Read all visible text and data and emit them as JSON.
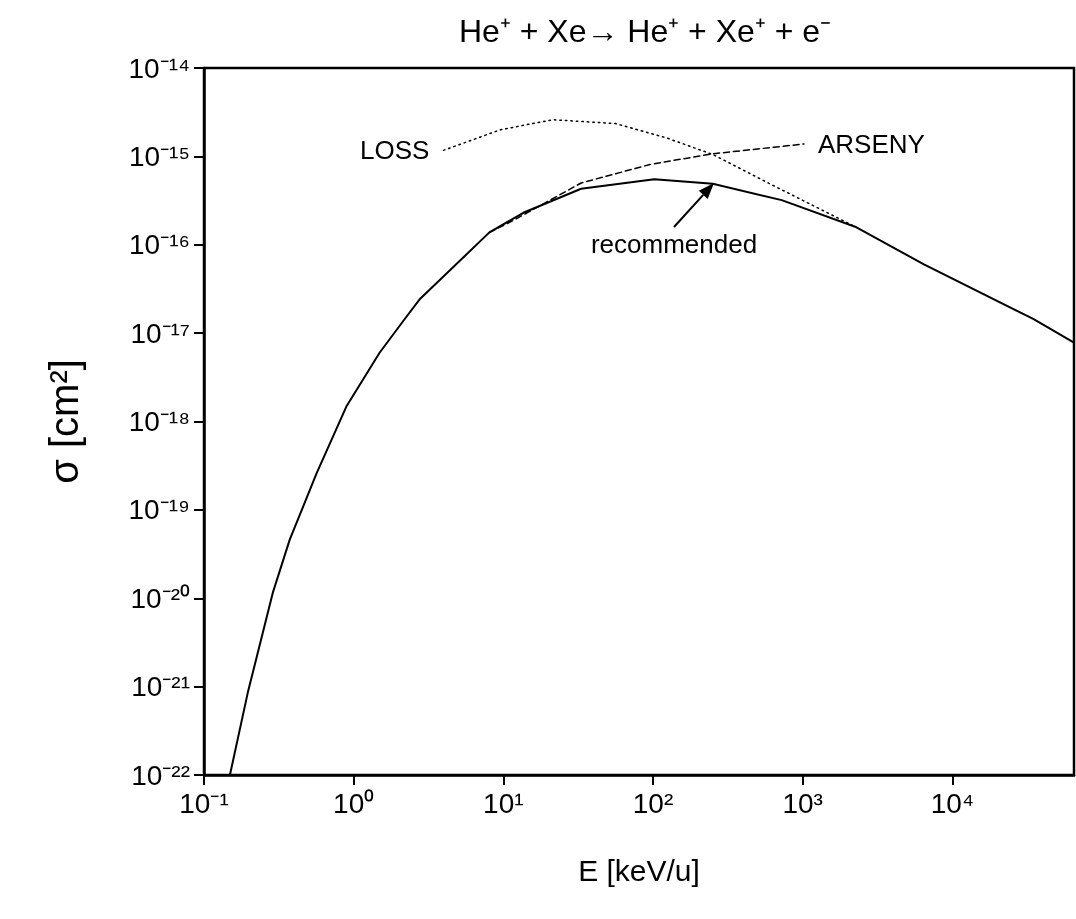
{
  "chart_data": {
    "type": "line",
    "title": "He⁺ + Xe→ He⁺ + Xe⁺ + e⁻",
    "xlabel": "E [keV/u]",
    "ylabel": "σ [cm²]",
    "log": "xy",
    "grid": false,
    "legend": false,
    "marker": "none",
    "xlim": [
      0.1,
      65000
    ],
    "ylim": [
      1e-22,
      1e-14
    ],
    "xticks": [
      {
        "value": 0.1,
        "label": "10⁻¹"
      },
      {
        "value": 1,
        "label": "10⁰"
      },
      {
        "value": 10,
        "label": "10¹"
      },
      {
        "value": 100,
        "label": "10²"
      },
      {
        "value": 1000,
        "label": "10³"
      },
      {
        "value": 10000,
        "label": "10⁴"
      }
    ],
    "yticks": [
      {
        "value": 1e-22,
        "label": "10⁻²²"
      },
      {
        "value": 1e-21,
        "label": "10⁻²¹"
      },
      {
        "value": 1e-20,
        "label": "10⁻²⁰"
      },
      {
        "value": 1e-19,
        "label": "10⁻¹⁹"
      },
      {
        "value": 1e-18,
        "label": "10⁻¹⁸"
      },
      {
        "value": 1e-17,
        "label": "10⁻¹⁷"
      },
      {
        "value": 1e-16,
        "label": "10⁻¹⁶"
      },
      {
        "value": 1e-15,
        "label": "10⁻¹⁵"
      },
      {
        "value": 1e-14,
        "label": "10⁻¹⁴"
      }
    ],
    "annotations": [
      "recommended"
    ],
    "series": [
      {
        "color": "#000000",
        "line_style": "solid",
        "x": [
          0.149,
          0.196,
          0.288,
          0.374,
          0.566,
          0.898,
          1.49,
          2.15,
          2.75,
          8.07,
          13.6,
          33.1,
          102,
          251,
          724,
          2240,
          6460,
          34700,
          65000
        ],
        "values": [
          1e-22,
          8.5e-22,
          1.15e-20,
          4.6e-20,
          2.6e-19,
          1.5e-18,
          6e-18,
          1.38e-17,
          2.4e-17,
          1.38e-16,
          2.3e-16,
          4.3e-16,
          5.5e-16,
          4.9e-16,
          3.2e-16,
          1.6e-16,
          6e-17,
          1.45e-17,
          7.8e-18
        ]
      },
      {
        "name": "LOSS",
        "color": "#000000",
        "line_style": "dotted",
        "x": [
          3.98,
          9.55,
          21.4,
          56.2,
          123,
          251,
          603,
          2240
        ],
        "values": [
          1.17e-15,
          2e-15,
          2.6e-15,
          2.35e-15,
          1.62e-15,
          1.05e-15,
          4.9e-16,
          1.6e-16
        ]
      },
      {
        "name": "ARSENY",
        "color": "#000000",
        "line_style": "dashed",
        "x": [
          8.07,
          11.5,
          33.1,
          95.5,
          251,
          1020
        ],
        "values": [
          1.38e-16,
          1.86e-16,
          5e-16,
          8.1e-16,
          1.07e-15,
          1.38e-15
        ]
      }
    ]
  }
}
